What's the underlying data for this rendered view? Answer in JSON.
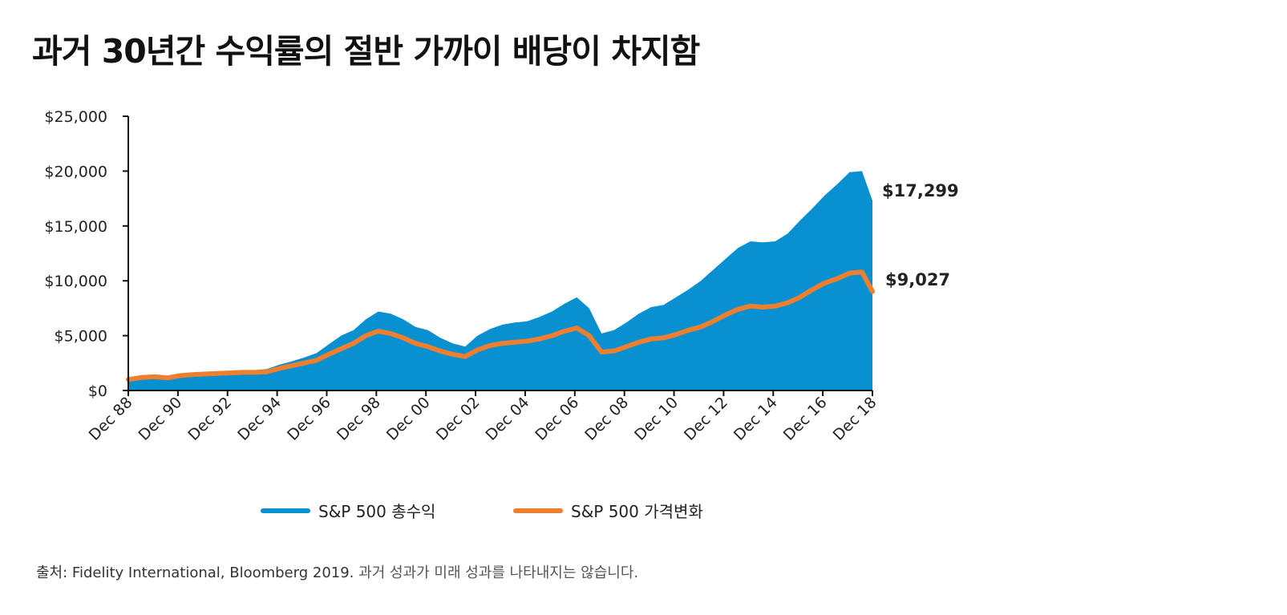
{
  "chart_data": {
    "type": "area",
    "title": "과거 30년간 수익률의 절반 가까이 배당이 차지함",
    "xlabel": "",
    "ylabel": "",
    "y_ticks": [
      "$0",
      "$5,000",
      "$10,000",
      "$15,000",
      "$20,000",
      "$25,000"
    ],
    "ylim": [
      0,
      25000
    ],
    "x_ticks": [
      "Dec 88",
      "Dec 90",
      "Dec 92",
      "Dec 94",
      "Dec 96",
      "Dec 98",
      "Dec 00",
      "Dec 02",
      "Dec 04",
      "Dec 06",
      "Dec 08",
      "Dec 10",
      "Dec 12",
      "Dec 14",
      "Dec 16",
      "Dec 18"
    ],
    "xlim": [
      1988.92,
      2018.92
    ],
    "grid": false,
    "legend_position": "bottom",
    "x": [
      1988.92,
      1989.5,
      1990.0,
      1990.5,
      1991.0,
      1991.5,
      1992.0,
      1992.5,
      1993.0,
      1993.5,
      1994.0,
      1994.5,
      1995.0,
      1995.5,
      1996.0,
      1996.5,
      1997.0,
      1997.5,
      1998.0,
      1998.5,
      1999.0,
      1999.5,
      2000.0,
      2000.5,
      2001.0,
      2001.5,
      2002.0,
      2002.5,
      2003.0,
      2003.5,
      2004.0,
      2004.5,
      2005.0,
      2005.5,
      2006.0,
      2006.5,
      2007.0,
      2007.5,
      2008.0,
      2008.5,
      2009.0,
      2009.5,
      2010.0,
      2010.5,
      2011.0,
      2011.5,
      2012.0,
      2012.5,
      2013.0,
      2013.5,
      2014.0,
      2014.5,
      2015.0,
      2015.5,
      2016.0,
      2016.5,
      2017.0,
      2017.5,
      2018.0,
      2018.5,
      2018.92
    ],
    "series": [
      {
        "name": "S&P 500 총수익",
        "color": "#0890d0",
        "style": "area",
        "end_label": "$17,299",
        "values": [
          1000,
          1250,
          1300,
          1250,
          1450,
          1550,
          1600,
          1700,
          1800,
          1850,
          1850,
          1950,
          2350,
          2650,
          3000,
          3400,
          4200,
          5000,
          5500,
          6500,
          7200,
          7000,
          6500,
          5800,
          5500,
          4800,
          4300,
          4000,
          5000,
          5600,
          6000,
          6200,
          6300,
          6700,
          7200,
          7900,
          8500,
          7500,
          5200,
          5500,
          6200,
          7000,
          7600,
          7800,
          8500,
          9200,
          10000,
          11000,
          12000,
          13000,
          13600,
          13500,
          13600,
          14300,
          15500,
          16600,
          17800,
          18800,
          19900,
          20000,
          17299
        ]
      },
      {
        "name": "S&P 500 가격변화",
        "color": "#ee7f2f",
        "style": "line",
        "end_label": "$9,027",
        "values": [
          1000,
          1200,
          1250,
          1150,
          1350,
          1450,
          1500,
          1550,
          1600,
          1650,
          1650,
          1700,
          2000,
          2250,
          2500,
          2750,
          3300,
          3800,
          4300,
          5000,
          5400,
          5200,
          4800,
          4300,
          4000,
          3600,
          3300,
          3100,
          3700,
          4100,
          4300,
          4400,
          4500,
          4700,
          5000,
          5400,
          5700,
          5000,
          3500,
          3600,
          4000,
          4400,
          4700,
          4800,
          5100,
          5500,
          5800,
          6300,
          6900,
          7400,
          7700,
          7600,
          7700,
          8000,
          8500,
          9200,
          9800,
          10200,
          10700,
          10800,
          9027
        ]
      }
    ]
  },
  "source": {
    "prefix": "출처:",
    "text": "Fidelity International, Bloomberg 2019.",
    "note": "과거 성과가 미래 성과를 나타내지는 않습니다."
  }
}
